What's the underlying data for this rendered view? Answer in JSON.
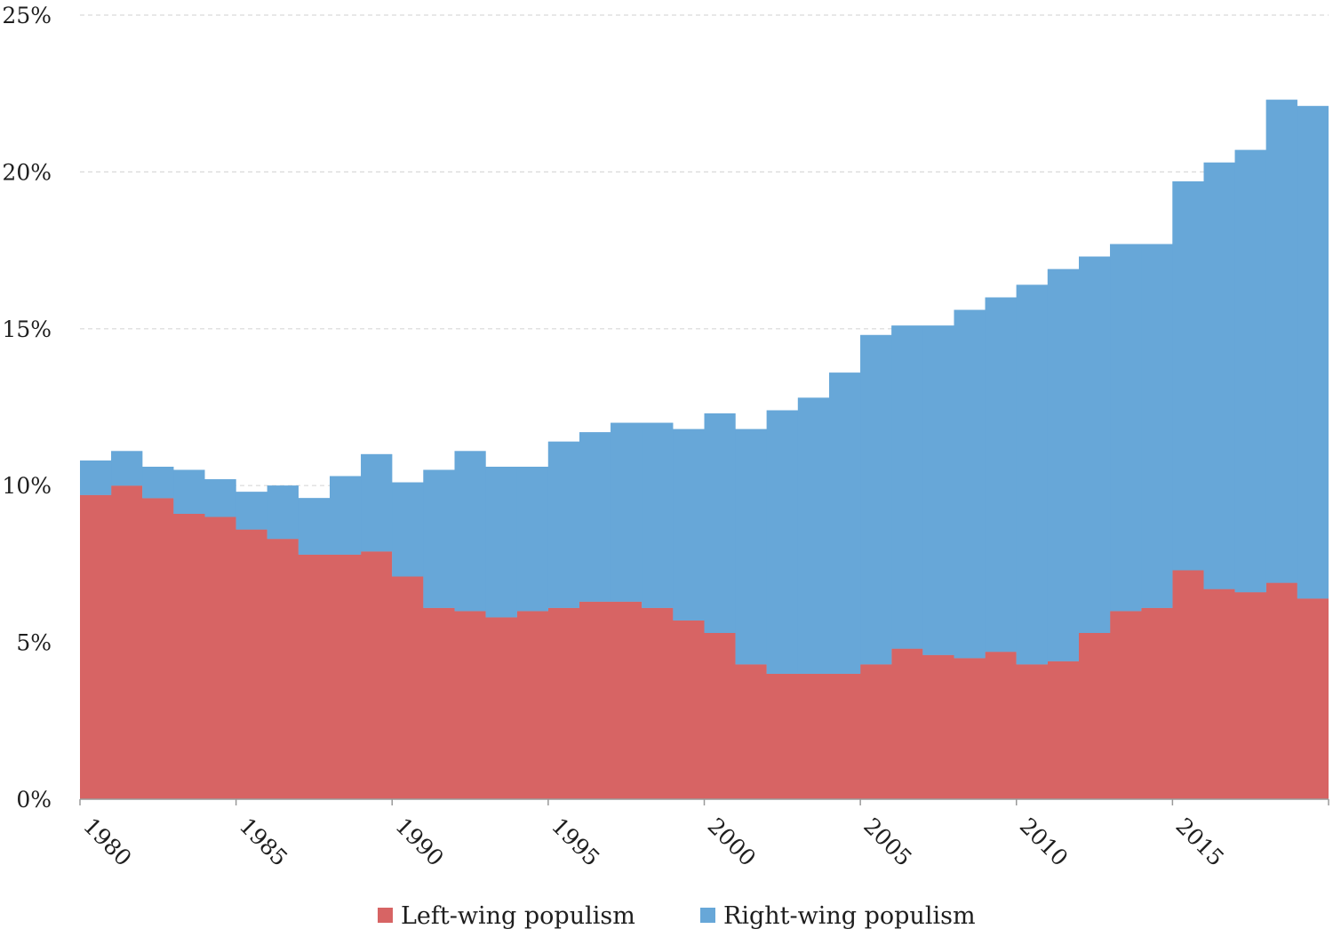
{
  "chart_data": {
    "type": "area",
    "stacked": true,
    "step": true,
    "title": "",
    "xlabel": "",
    "ylabel": "",
    "ylim": [
      0,
      25
    ],
    "xlim": [
      1980,
      2020
    ],
    "grid": "horizontal-dashed",
    "legend_position": "bottom-center",
    "y_ticks": [
      "0%",
      "5%",
      "10%",
      "15%",
      "20%",
      "25%"
    ],
    "x_ticks": [
      "1980",
      "1985",
      "1990",
      "1995",
      "2000",
      "2005",
      "2010",
      "2015"
    ],
    "x": [
      1980,
      1981,
      1982,
      1983,
      1984,
      1985,
      1986,
      1987,
      1988,
      1989,
      1990,
      1991,
      1992,
      1993,
      1994,
      1995,
      1996,
      1997,
      1998,
      1999,
      2000,
      2001,
      2002,
      2003,
      2004,
      2005,
      2006,
      2007,
      2008,
      2009,
      2010,
      2011,
      2012,
      2013,
      2014,
      2015,
      2016,
      2017,
      2018,
      2019
    ],
    "series": [
      {
        "name": "Left-wing populism",
        "color": "#d76464",
        "values": [
          9.7,
          10.0,
          9.6,
          9.1,
          9.0,
          8.6,
          8.3,
          7.8,
          7.8,
          7.9,
          7.1,
          6.1,
          6.0,
          5.8,
          6.0,
          6.1,
          6.3,
          6.3,
          6.1,
          5.7,
          5.3,
          4.3,
          4.0,
          4.0,
          4.0,
          4.3,
          4.8,
          4.6,
          4.5,
          4.7,
          4.3,
          4.4,
          5.3,
          6.0,
          6.1,
          7.3,
          6.7,
          6.6,
          6.9,
          6.4
        ]
      },
      {
        "name": "Right-wing populism",
        "color": "#67a7d8",
        "values": [
          1.1,
          1.1,
          1.0,
          1.4,
          1.2,
          1.2,
          1.7,
          1.8,
          2.5,
          3.1,
          3.0,
          4.4,
          5.1,
          4.8,
          4.6,
          5.3,
          5.4,
          5.7,
          5.9,
          6.1,
          7.0,
          7.5,
          8.4,
          8.8,
          9.6,
          10.5,
          10.3,
          10.5,
          11.1,
          11.3,
          12.1,
          12.5,
          12.0,
          11.7,
          11.6,
          12.4,
          13.6,
          14.1,
          15.4,
          15.7
        ]
      }
    ]
  }
}
